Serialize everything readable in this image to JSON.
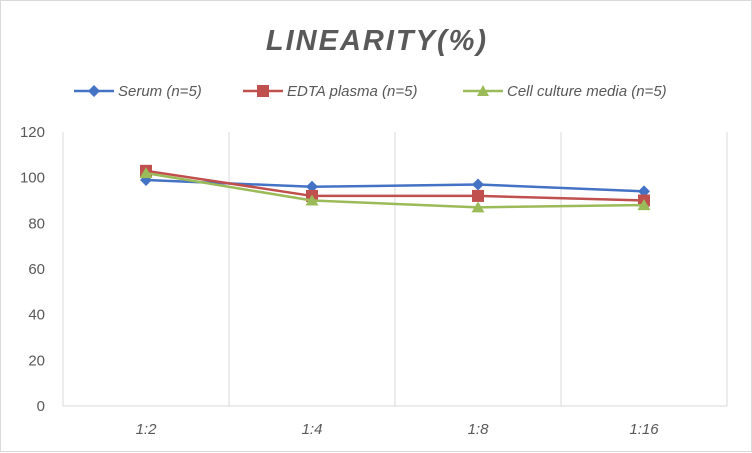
{
  "chart_data": {
    "type": "line",
    "title": "LINEARITY(%)",
    "xlabel": "",
    "ylabel": "",
    "categories": [
      "1:2",
      "1:4",
      "1:8",
      "1:16"
    ],
    "ylim": [
      0,
      120
    ],
    "yticks": [
      0,
      20,
      40,
      60,
      80,
      100,
      120
    ],
    "grid": "vertical",
    "legend_position": "top",
    "series": [
      {
        "name": "Serum (n=5)",
        "values": [
          99,
          96,
          97,
          94
        ],
        "color": "#4472c4",
        "marker": "diamond"
      },
      {
        "name": "EDTA plasma (n=5)",
        "values": [
          103,
          92,
          92,
          90
        ],
        "color": "#c0504d",
        "marker": "square"
      },
      {
        "name": "Cell culture media (n=5)",
        "values": [
          102,
          90,
          87,
          88
        ],
        "color": "#9bbb59",
        "marker": "triangle"
      }
    ]
  }
}
